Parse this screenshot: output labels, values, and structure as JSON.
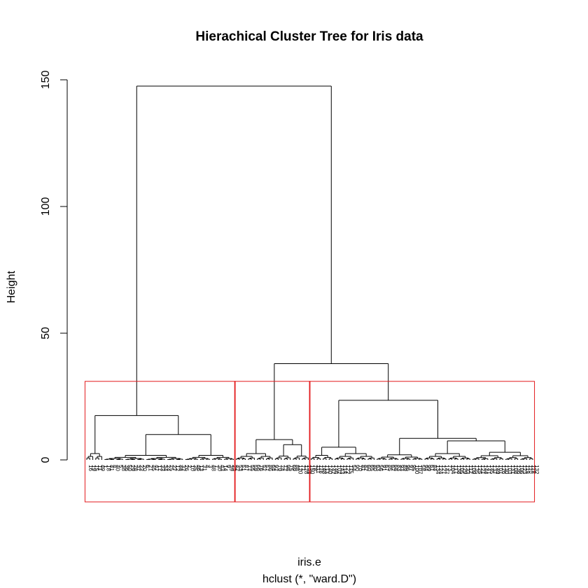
{
  "chart_data": {
    "type": "dendrogram",
    "title": "Hierachical Cluster Tree for Iris data",
    "ylabel": "Height",
    "xlabel": "iris.e",
    "subtitle": "hclust (*, \"ward.D\")",
    "ylim": [
      0,
      150
    ],
    "yticks": [
      0,
      50,
      100,
      150
    ],
    "merges": [
      {
        "height": 147.5,
        "children": [
          "setosa",
          "versicolor_virginica"
        ]
      },
      {
        "height": 38.0,
        "children": [
          "group_2",
          "group_3"
        ]
      },
      {
        "height": 23.5,
        "children": [
          "group_3_a",
          "group_3_b"
        ]
      },
      {
        "height": 17.5,
        "children": [
          "group_1_a",
          "group_1_b"
        ]
      },
      {
        "height": 10.0,
        "children": [
          "group_1_b_left",
          "group_1_b_right"
        ]
      },
      {
        "height": 8.0,
        "children": [
          "group_2_a",
          "group_2_b"
        ]
      },
      {
        "height": 8.5,
        "children": [
          "group_3_b_left",
          "group_3_b_right"
        ]
      },
      {
        "height": 7.5,
        "children": [
          "group_3_b_right_a",
          "group_3_b_right_b"
        ]
      },
      {
        "height": 6.0,
        "children": [
          "group_2_b_left",
          "group_2_b_right"
        ]
      },
      {
        "height": 5.0,
        "children": [
          "group_3_a_left",
          "group_3_a_right"
        ]
      }
    ],
    "cut": {
      "k": 3,
      "height": 31,
      "clusters": [
        {
          "name": "cluster-1",
          "color": "#e31a1c"
        },
        {
          "name": "cluster-2",
          "color": "#e31a1c"
        },
        {
          "name": "cluster-3",
          "color": "#e31a1c"
        }
      ]
    },
    "leaves": [
      "16",
      "19",
      "15",
      "11",
      "49",
      "1",
      "18",
      "41",
      "8",
      "40",
      "5",
      "38",
      "36",
      "50",
      "29",
      "28",
      "37",
      "22",
      "20",
      "6",
      "21",
      "45",
      "47",
      "17",
      "33",
      "34",
      "24",
      "25",
      "27",
      "12",
      "44",
      "32",
      "26",
      "2",
      "10",
      "35",
      "46",
      "13",
      "31",
      "4",
      "3",
      "48",
      "7",
      "30",
      "43",
      "14",
      "9",
      "39",
      "23",
      "42",
      "53",
      "51",
      "87",
      "77",
      "55",
      "59",
      "66",
      "76",
      "52",
      "57",
      "86",
      "64",
      "92",
      "79",
      "74",
      "72",
      "98",
      "75",
      "69",
      "88",
      "120",
      "71",
      "128",
      "139",
      "150",
      "78",
      "111",
      "116",
      "148",
      "113",
      "140",
      "142",
      "146",
      "102",
      "143",
      "114",
      "122",
      "115",
      "54",
      "90",
      "70",
      "81",
      "82",
      "60",
      "65",
      "80",
      "63",
      "56",
      "91",
      "67",
      "85",
      "62",
      "68",
      "83",
      "93",
      "89",
      "96",
      "97",
      "95",
      "100",
      "107",
      "58",
      "94",
      "99",
      "61",
      "84",
      "134",
      "124",
      "127",
      "147",
      "73",
      "104",
      "117",
      "138",
      "105",
      "129",
      "133",
      "112",
      "109",
      "135",
      "125",
      "121",
      "144",
      "141",
      "145",
      "137",
      "149",
      "101",
      "126",
      "130",
      "103",
      "131",
      "108",
      "136",
      "106",
      "123",
      "119",
      "110",
      "118",
      "132"
    ]
  },
  "colors": {
    "tree": "#000000",
    "box": "#e31a1c"
  }
}
